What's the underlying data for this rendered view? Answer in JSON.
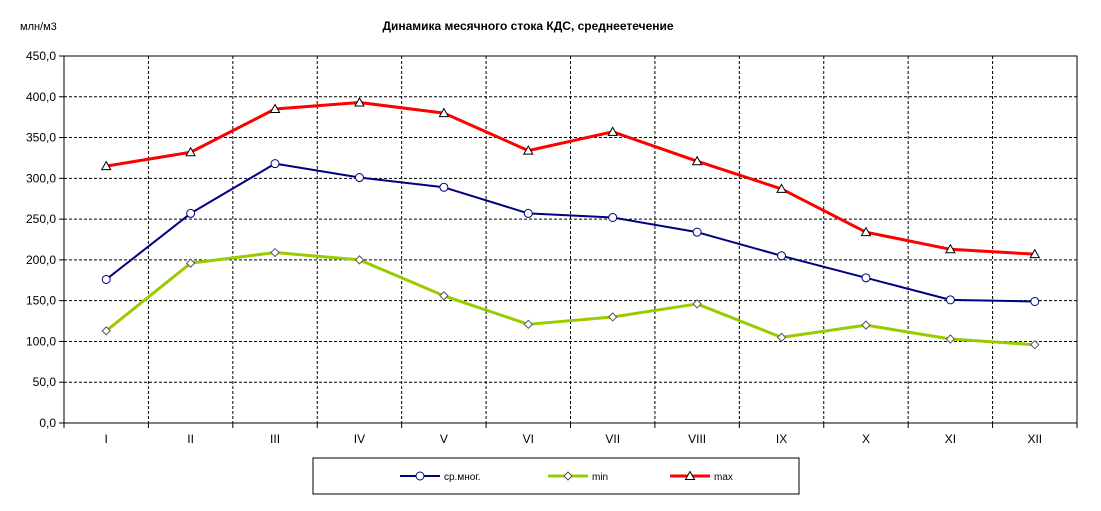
{
  "chart_data": {
    "type": "line",
    "title": "Динамика месячного стока КДС, среднеетечение",
    "ylabel": "млн/м3",
    "xlabel": "",
    "categories": [
      "I",
      "II",
      "III",
      "IV",
      "V",
      "VI",
      "VII",
      "VIII",
      "IX",
      "X",
      "XI",
      "XII"
    ],
    "ylim": [
      0,
      450
    ],
    "y_ticks": [
      "0,0",
      "50,0",
      "100,0",
      "150,0",
      "200,0",
      "250,0",
      "300,0",
      "350,0",
      "400,0",
      "450,0"
    ],
    "grid": true,
    "legend_position": "bottom",
    "series": [
      {
        "name": "ср.мног.",
        "color": "#000080",
        "marker": "circle",
        "values": [
          176,
          257,
          318,
          301,
          289,
          257,
          252,
          234,
          205,
          178,
          151,
          149
        ]
      },
      {
        "name": "min",
        "color": "#99cc00",
        "marker": "diamond",
        "values": [
          113,
          196,
          209,
          200,
          156,
          121,
          130,
          146,
          105,
          120,
          103,
          96
        ]
      },
      {
        "name": "max",
        "color": "#ff0000",
        "marker": "triangle",
        "values": [
          315,
          332,
          385,
          393,
          380,
          334,
          357,
          321,
          287,
          234,
          213,
          207
        ]
      }
    ]
  }
}
